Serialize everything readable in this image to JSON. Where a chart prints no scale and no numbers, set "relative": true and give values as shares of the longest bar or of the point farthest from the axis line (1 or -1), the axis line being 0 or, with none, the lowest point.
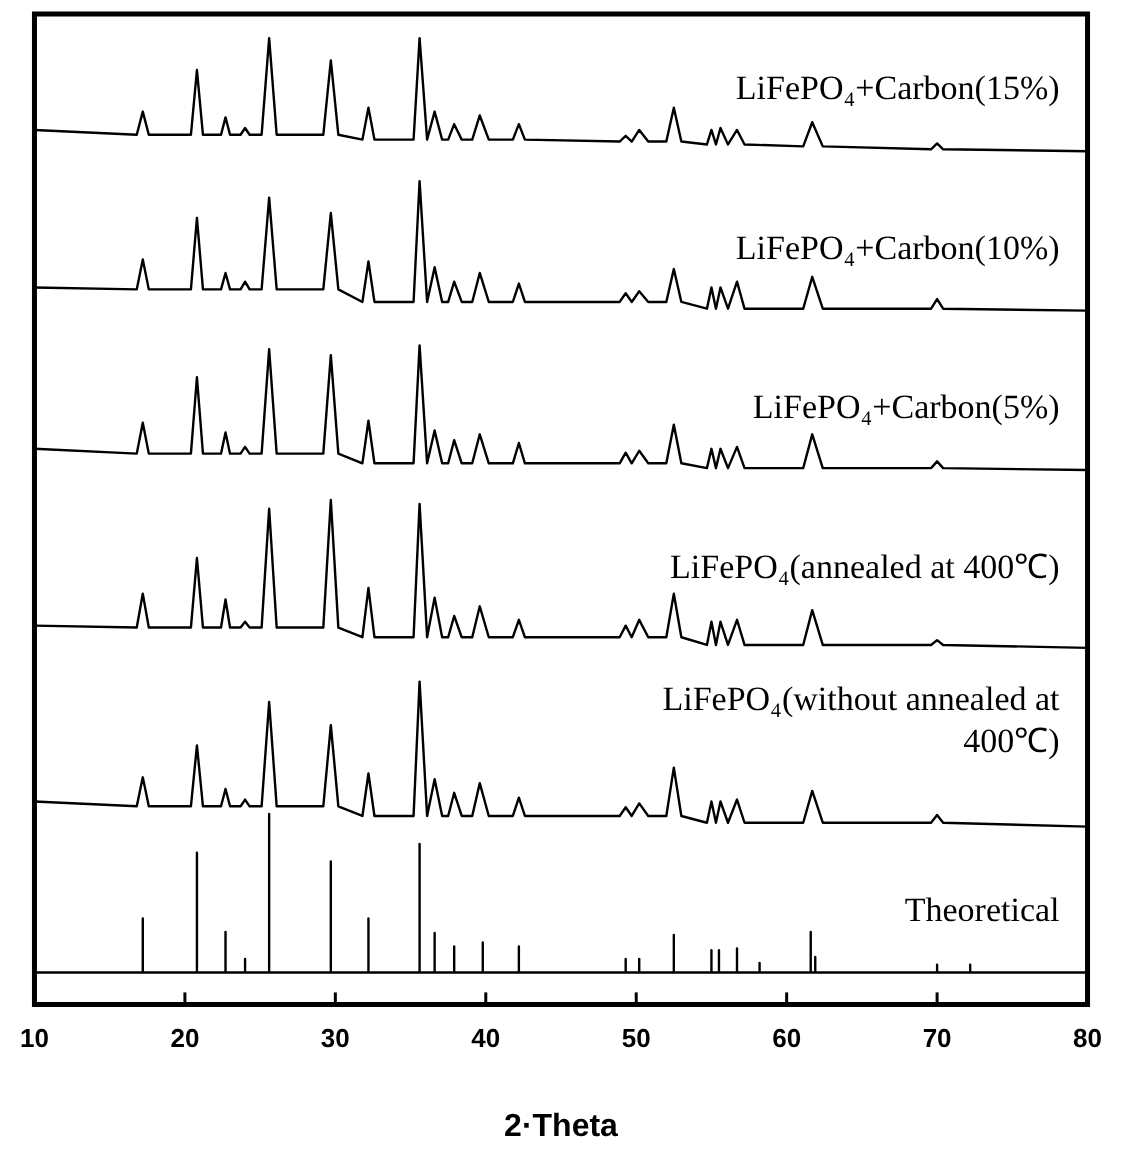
{
  "chart_data": {
    "type": "line",
    "relative": true,
    "xlabel": "2·Theta",
    "xlim": [
      10,
      80
    ],
    "xticks": [
      10,
      20,
      30,
      40,
      50,
      60,
      70,
      80
    ],
    "x": [
      10,
      16.8,
      17.2,
      17.6,
      20.4,
      20.8,
      21.2,
      22.4,
      22.7,
      23.0,
      23.7,
      24.0,
      24.3,
      25.1,
      25.6,
      26.1,
      29.2,
      29.7,
      30.2,
      31.8,
      32.2,
      32.6,
      35.2,
      35.6,
      36.1,
      36.6,
      37.1,
      37.5,
      37.9,
      38.4,
      39.1,
      39.6,
      40.2,
      41.8,
      42.2,
      42.6,
      48.9,
      49.3,
      49.7,
      50.2,
      50.8,
      52.0,
      52.5,
      53.0,
      54.7,
      55.0,
      55.3,
      55.6,
      56.1,
      56.7,
      57.2,
      61.1,
      61.7,
      62.4,
      69.6,
      70.0,
      70.4,
      80
    ],
    "series": [
      {
        "name": "LiFePO₄+Carbon(15%)",
        "color": "#000000",
        "values": [
          0.905,
          0.9,
          0.924,
          0.9,
          0.9,
          0.967,
          0.9,
          0.9,
          0.918,
          0.9,
          0.9,
          0.907,
          0.9,
          0.9,
          1.0,
          0.9,
          0.9,
          0.977,
          0.9,
          0.895,
          0.928,
          0.895,
          0.895,
          1.0,
          0.895,
          0.924,
          0.895,
          0.895,
          0.911,
          0.895,
          0.895,
          0.92,
          0.895,
          0.895,
          0.911,
          0.895,
          0.893,
          0.899,
          0.893,
          0.905,
          0.893,
          0.893,
          0.928,
          0.893,
          0.89,
          0.905,
          0.89,
          0.907,
          0.89,
          0.905,
          0.89,
          0.888,
          0.913,
          0.888,
          0.885,
          0.891,
          0.885,
          0.883
        ]
      },
      {
        "name": "LiFePO₄+Carbon(10%)",
        "color": "#000000",
        "values": [
          0.742,
          0.74,
          0.771,
          0.74,
          0.74,
          0.814,
          0.74,
          0.74,
          0.757,
          0.74,
          0.74,
          0.748,
          0.74,
          0.74,
          0.835,
          0.74,
          0.74,
          0.819,
          0.74,
          0.727,
          0.769,
          0.727,
          0.727,
          0.852,
          0.727,
          0.763,
          0.727,
          0.727,
          0.748,
          0.727,
          0.727,
          0.757,
          0.727,
          0.727,
          0.746,
          0.727,
          0.727,
          0.736,
          0.727,
          0.738,
          0.727,
          0.727,
          0.761,
          0.727,
          0.72,
          0.742,
          0.72,
          0.742,
          0.72,
          0.748,
          0.72,
          0.72,
          0.753,
          0.72,
          0.72,
          0.73,
          0.72,
          0.718
        ]
      },
      {
        "name": "LiFePO₄+Carbon(5%)",
        "color": "#000000",
        "values": [
          0.575,
          0.57,
          0.602,
          0.57,
          0.57,
          0.649,
          0.57,
          0.57,
          0.592,
          0.57,
          0.57,
          0.577,
          0.57,
          0.57,
          0.678,
          0.57,
          0.57,
          0.672,
          0.57,
          0.56,
          0.604,
          0.56,
          0.56,
          0.682,
          0.56,
          0.594,
          0.56,
          0.56,
          0.584,
          0.56,
          0.56,
          0.59,
          0.56,
          0.56,
          0.581,
          0.56,
          0.56,
          0.571,
          0.56,
          0.573,
          0.56,
          0.56,
          0.6,
          0.56,
          0.555,
          0.575,
          0.555,
          0.575,
          0.555,
          0.577,
          0.555,
          0.555,
          0.59,
          0.555,
          0.555,
          0.562,
          0.555,
          0.553
        ]
      },
      {
        "name": "LiFePO₄(annealed at 400℃)",
        "color": "#000000",
        "values": [
          0.392,
          0.39,
          0.425,
          0.39,
          0.39,
          0.462,
          0.39,
          0.39,
          0.419,
          0.39,
          0.39,
          0.396,
          0.39,
          0.39,
          0.513,
          0.39,
          0.39,
          0.522,
          0.39,
          0.38,
          0.431,
          0.38,
          0.38,
          0.518,
          0.38,
          0.421,
          0.38,
          0.38,
          0.402,
          0.38,
          0.38,
          0.412,
          0.38,
          0.38,
          0.398,
          0.38,
          0.38,
          0.392,
          0.38,
          0.398,
          0.38,
          0.38,
          0.425,
          0.38,
          0.372,
          0.396,
          0.372,
          0.396,
          0.372,
          0.398,
          0.372,
          0.372,
          0.408,
          0.372,
          0.372,
          0.377,
          0.372,
          0.369
        ]
      },
      {
        "name": "LiFePO₄(without annealed at 400℃)",
        "color": "#000000",
        "values": [
          0.21,
          0.205,
          0.235,
          0.205,
          0.205,
          0.268,
          0.205,
          0.205,
          0.223,
          0.205,
          0.205,
          0.212,
          0.205,
          0.205,
          0.313,
          0.205,
          0.205,
          0.289,
          0.205,
          0.195,
          0.239,
          0.195,
          0.195,
          0.334,
          0.195,
          0.233,
          0.195,
          0.195,
          0.219,
          0.195,
          0.195,
          0.229,
          0.195,
          0.195,
          0.214,
          0.195,
          0.195,
          0.204,
          0.195,
          0.208,
          0.195,
          0.195,
          0.245,
          0.195,
          0.188,
          0.21,
          0.188,
          0.21,
          0.188,
          0.212,
          0.188,
          0.188,
          0.221,
          0.188,
          0.188,
          0.196,
          0.188,
          0.184
        ]
      },
      {
        "name": "Theoretical",
        "color": "#000000",
        "x": [
          10,
          17.2,
          17.2,
          17.2,
          20.8,
          20.8,
          20.8,
          22.7,
          22.7,
          22.7,
          24.0,
          24.0,
          24.0,
          25.6,
          25.6,
          25.6,
          29.7,
          29.7,
          29.7,
          32.2,
          32.2,
          32.2,
          35.6,
          35.6,
          35.6,
          36.6,
          36.6,
          36.6,
          37.9,
          37.9,
          37.9,
          39.8,
          39.8,
          39.8,
          42.2,
          42.2,
          42.2,
          49.3,
          49.3,
          49.3,
          50.2,
          50.2,
          50.2,
          52.5,
          52.5,
          52.5,
          55.0,
          55.0,
          55.0,
          55.5,
          55.5,
          55.5,
          56.7,
          56.7,
          56.7,
          58.2,
          58.2,
          58.2,
          61.6,
          61.6,
          61.6,
          61.9,
          61.9,
          61.9,
          70.0,
          70.0,
          70.0,
          72.2,
          72.2,
          72.2,
          80
        ],
        "values": [
          0.033,
          0.033,
          0.089,
          0.033,
          0.033,
          0.157,
          0.033,
          0.033,
          0.075,
          0.033,
          0.033,
          0.047,
          0.033,
          0.033,
          0.197,
          0.033,
          0.033,
          0.148,
          0.033,
          0.033,
          0.089,
          0.033,
          0.033,
          0.166,
          0.033,
          0.033,
          0.074,
          0.033,
          0.033,
          0.06,
          0.033,
          0.033,
          0.064,
          0.033,
          0.033,
          0.06,
          0.033,
          0.033,
          0.047,
          0.033,
          0.033,
          0.047,
          0.033,
          0.033,
          0.072,
          0.033,
          0.033,
          0.056,
          0.033,
          0.033,
          0.056,
          0.033,
          0.033,
          0.058,
          0.033,
          0.033,
          0.043,
          0.033,
          0.033,
          0.075,
          0.033,
          0.033,
          0.049,
          0.033,
          0.033,
          0.041,
          0.033,
          0.033,
          0.041,
          0.033,
          0.033
        ]
      }
    ]
  }
}
